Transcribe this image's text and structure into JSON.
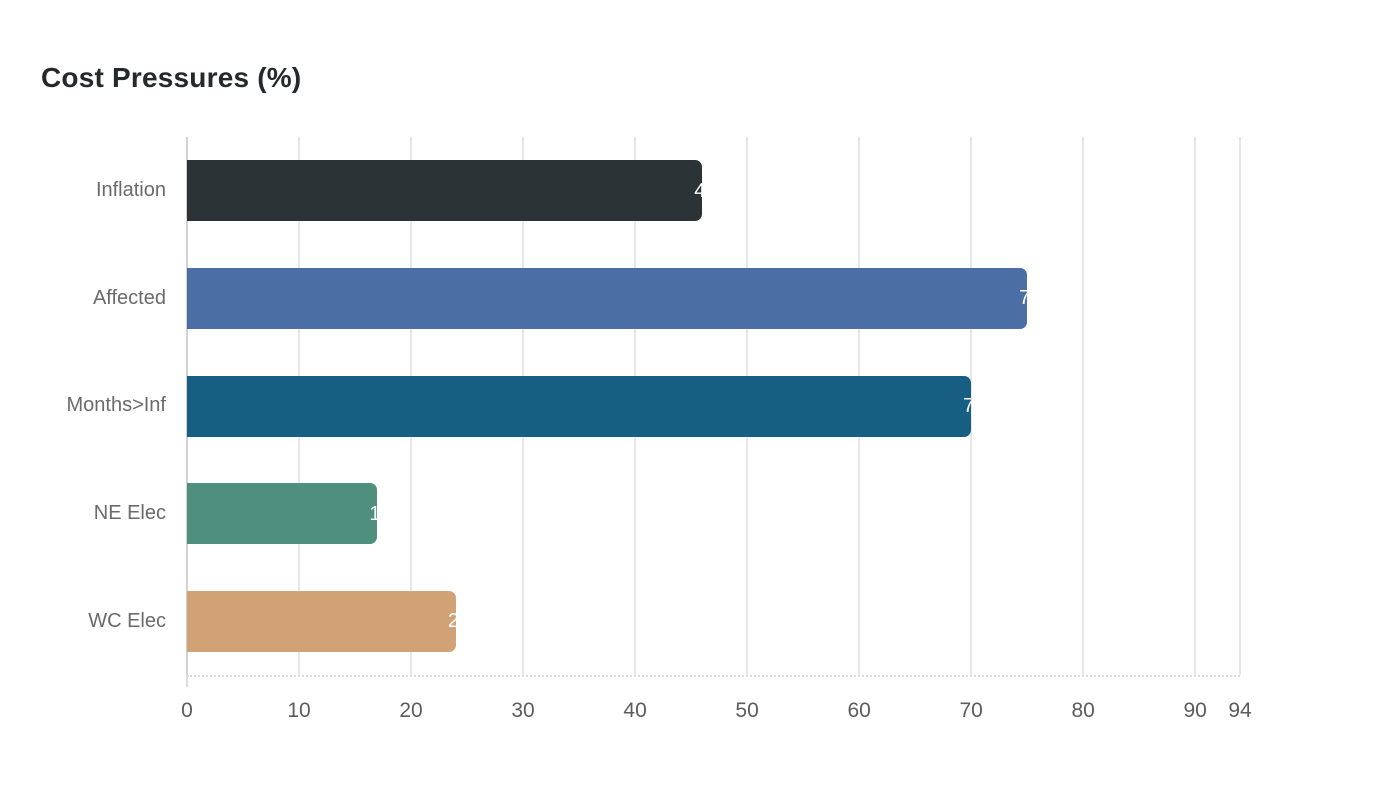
{
  "chart_data": {
    "type": "bar",
    "orientation": "horizontal",
    "title": "Cost Pressures (%)",
    "categories": [
      "Inflation",
      "Affected",
      "Months>Inf",
      "NE Elec",
      "WC Elec"
    ],
    "values": [
      46,
      75,
      70,
      17,
      24
    ],
    "bar_colors": [
      "#2c3336",
      "#4b6fa5",
      "#175f82",
      "#4f8f7e",
      "#d2a277"
    ],
    "xlim": [
      0,
      94
    ],
    "x_ticks": [
      0,
      10,
      20,
      30,
      40,
      50,
      60,
      70,
      80,
      90,
      94
    ],
    "grid": true,
    "value_label_color": "#ffffff",
    "legend": "none",
    "xlabel": "",
    "ylabel": ""
  }
}
